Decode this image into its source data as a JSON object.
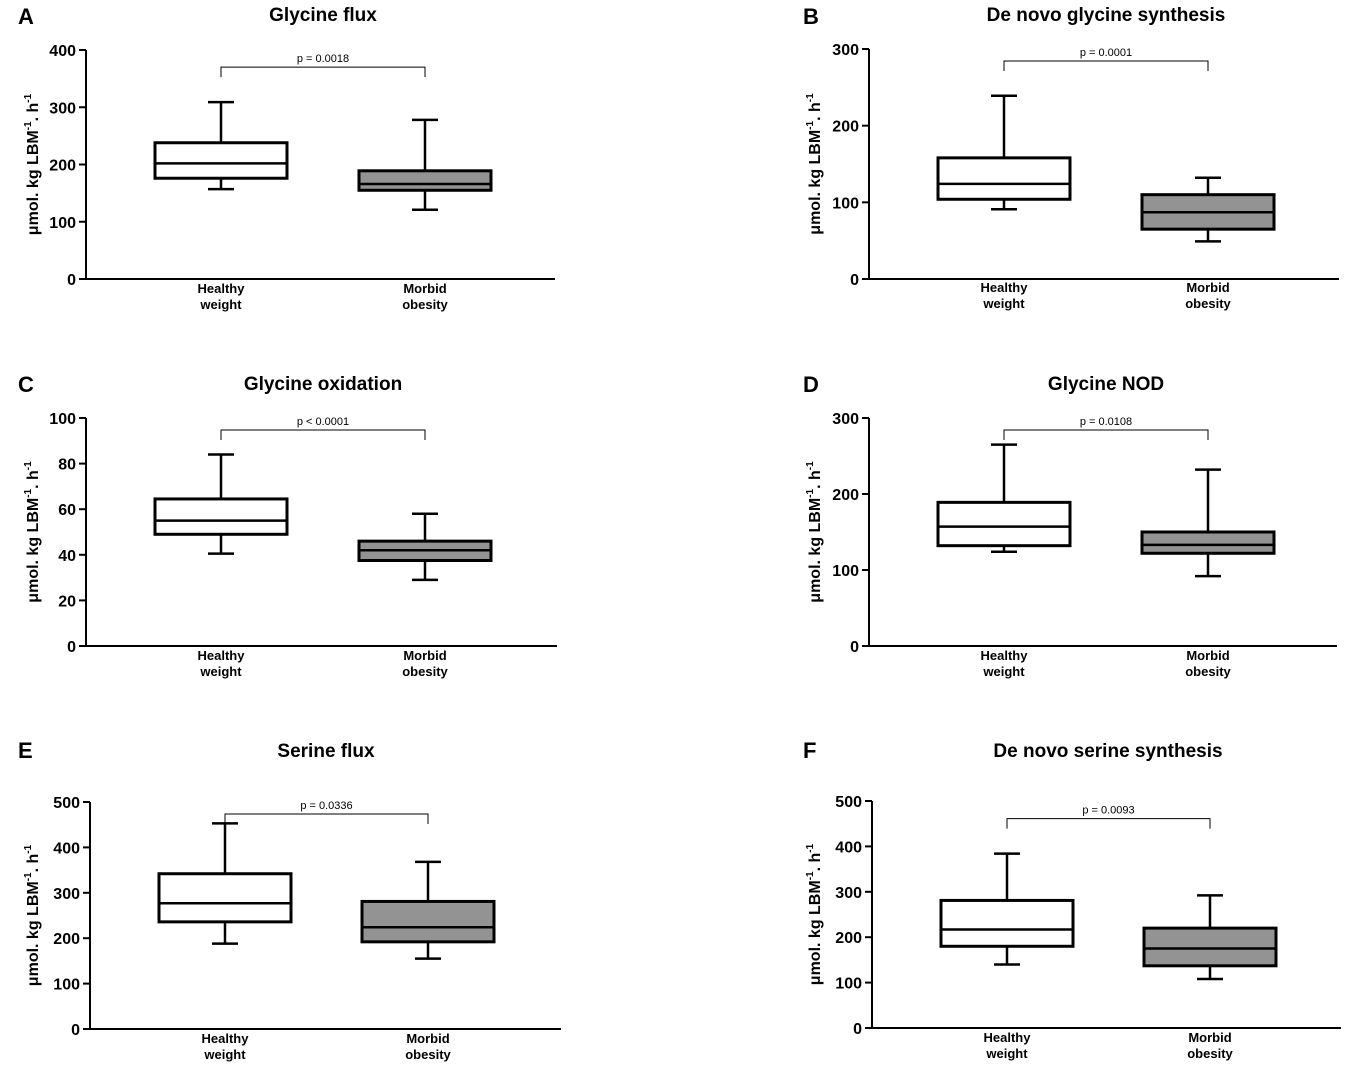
{
  "y_axis_label": {
    "main": "μmol. kg LBM",
    "sup1": "-1",
    "mid": ". h",
    "sup2": "-1"
  },
  "colors": {
    "healthy_fill": "#ffffff",
    "obesity_fill": "#939393",
    "stroke": "#000000"
  },
  "chart_data": [
    {
      "letter": "A",
      "type": "boxplot",
      "title": "Glycine flux",
      "ylim": [
        0,
        400
      ],
      "yticks": [
        0,
        100,
        200,
        300,
        400
      ],
      "pvalue": "p = 0.0018",
      "categories": [
        [
          "Healthy",
          "weight"
        ],
        [
          "Morbid",
          "obesity"
        ]
      ],
      "boxes": [
        {
          "group": "Healthy weight",
          "min": 157,
          "q1": 176,
          "median": 202,
          "q3": 238,
          "max": 309
        },
        {
          "group": "Morbid obesity",
          "min": 121,
          "q1": 155,
          "median": 166,
          "q3": 189,
          "max": 278
        }
      ]
    },
    {
      "letter": "B",
      "type": "boxplot",
      "title": "De novo glycine synthesis",
      "ylim": [
        0,
        300
      ],
      "yticks": [
        0,
        100,
        200,
        300
      ],
      "pvalue": "p = 0.0001",
      "categories": [
        [
          "Healthy",
          "weight"
        ],
        [
          "Morbid",
          "obesity"
        ]
      ],
      "boxes": [
        {
          "group": "Healthy weight",
          "min": 91,
          "q1": 104,
          "median": 124,
          "q3": 158,
          "max": 239
        },
        {
          "group": "Morbid obesity",
          "min": 49,
          "q1": 65,
          "median": 87,
          "q3": 110,
          "max": 132
        }
      ]
    },
    {
      "letter": "C",
      "type": "boxplot",
      "title": "Glycine oxidation",
      "ylim": [
        0,
        100
      ],
      "yticks": [
        0,
        20,
        40,
        60,
        80,
        100
      ],
      "pvalue": "p < 0.0001",
      "categories": [
        [
          "Healthy",
          "weight"
        ],
        [
          "Morbid",
          "obesity"
        ]
      ],
      "boxes": [
        {
          "group": "Healthy weight",
          "min": 40.5,
          "q1": 49,
          "median": 55,
          "q3": 64.5,
          "max": 84
        },
        {
          "group": "Morbid obesity",
          "min": 29,
          "q1": 37.5,
          "median": 42,
          "q3": 46,
          "max": 58
        }
      ]
    },
    {
      "letter": "D",
      "type": "boxplot",
      "title": "Glycine NOD",
      "ylim": [
        0,
        300
      ],
      "yticks": [
        0,
        100,
        200,
        300
      ],
      "pvalue": "p = 0.0108",
      "categories": [
        [
          "Healthy",
          "weight"
        ],
        [
          "Morbid",
          "obesity"
        ]
      ],
      "boxes": [
        {
          "group": "Healthy weight",
          "min": 124,
          "q1": 132,
          "median": 157,
          "q3": 189,
          "max": 265
        },
        {
          "group": "Morbid obesity",
          "min": 92,
          "q1": 122,
          "median": 133,
          "q3": 150,
          "max": 232
        }
      ]
    },
    {
      "letter": "E",
      "type": "boxplot",
      "title": "Serine flux",
      "ylim": [
        0,
        500
      ],
      "yticks": [
        0,
        100,
        200,
        300,
        400,
        500
      ],
      "pvalue": "p = 0.0336",
      "categories": [
        [
          "Healthy",
          "weight"
        ],
        [
          "Morbid",
          "obesity"
        ]
      ],
      "boxes": [
        {
          "group": "Healthy weight",
          "min": 188,
          "q1": 236,
          "median": 277,
          "q3": 342,
          "max": 453
        },
        {
          "group": "Morbid obesity",
          "min": 155,
          "q1": 192,
          "median": 224,
          "q3": 281,
          "max": 368
        }
      ]
    },
    {
      "letter": "F",
      "type": "boxplot",
      "title": "De novo serine synthesis",
      "ylim": [
        0,
        500
      ],
      "yticks": [
        0,
        100,
        200,
        300,
        400,
        500
      ],
      "pvalue": "p = 0.0093",
      "categories": [
        [
          "Healthy",
          "weight"
        ],
        [
          "Morbid",
          "obesity"
        ]
      ],
      "boxes": [
        {
          "group": "Healthy weight",
          "min": 140,
          "q1": 180,
          "median": 217,
          "q3": 281,
          "max": 384
        },
        {
          "group": "Morbid obesity",
          "min": 108,
          "q1": 137,
          "median": 175,
          "q3": 220,
          "max": 292
        }
      ]
    }
  ]
}
